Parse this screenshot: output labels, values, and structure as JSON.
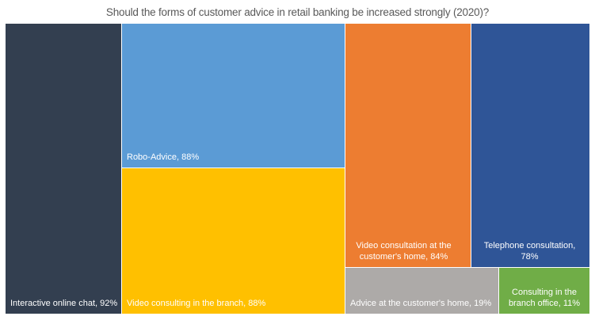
{
  "chart_data": {
    "type": "treemap",
    "title": "Should the forms of customer advice in retail banking be increased strongly  (2020)?",
    "items": [
      {
        "name": "Interactive online chat",
        "value": 92,
        "label": "Interactive online chat, 92%",
        "color": "#333F50"
      },
      {
        "name": "Robo-Advice",
        "value": 88,
        "label": "Robo-Advice, 88%",
        "color": "#5B9BD5"
      },
      {
        "name": "Video consulting in the branch",
        "value": 88,
        "label": "Video consulting in the branch, 88%",
        "color": "#FFC000"
      },
      {
        "name": "Video consultation at the customer's home",
        "value": 84,
        "label": "Video consultation at the customer's home, 84%",
        "color": "#ED7D31"
      },
      {
        "name": "Telephone consultation",
        "value": 78,
        "label": "Telephone consultation, 78%",
        "color": "#2F5597"
      },
      {
        "name": "Advice at the customer's home",
        "value": 19,
        "label": "Advice at the customer's home, 19%",
        "color": "#ADAAA8"
      },
      {
        "name": "Consulting in the branch office",
        "value": 11,
        "label": "Consulting in the branch office, 11%",
        "color": "#70AD47"
      }
    ],
    "unit": "%"
  }
}
